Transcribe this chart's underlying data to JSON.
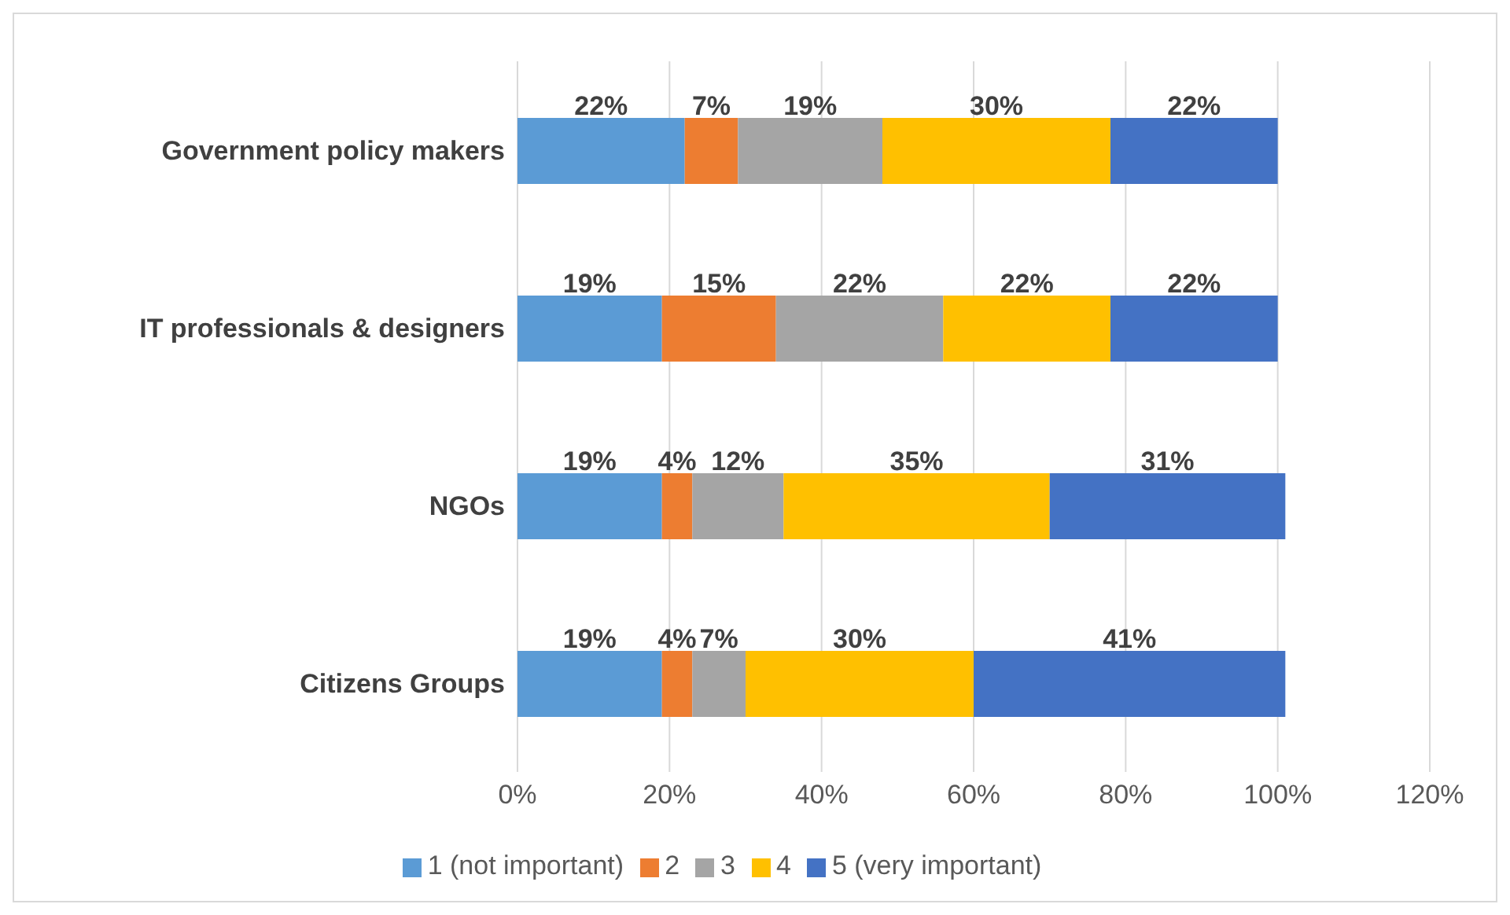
{
  "chart_data": {
    "type": "bar",
    "orientation": "horizontal",
    "stacked": true,
    "categories": [
      "Government policy makers",
      "IT professionals & designers",
      "NGOs",
      "Citizens Groups"
    ],
    "series": [
      {
        "name": "1 (not important)",
        "color": "#5b9bd5",
        "values": [
          22,
          19,
          19,
          19
        ],
        "value_labels": [
          "22%",
          "19%",
          "19%",
          "19%"
        ]
      },
      {
        "name": "2",
        "color": "#ed7d31",
        "values": [
          7,
          15,
          4,
          4
        ],
        "value_labels": [
          "7%",
          "15%",
          "4%",
          "4%"
        ]
      },
      {
        "name": "3",
        "color": "#a5a5a5",
        "values": [
          19,
          22,
          12,
          7
        ],
        "value_labels": [
          "19%",
          "22%",
          "12%",
          "7%"
        ]
      },
      {
        "name": "4",
        "color": "#ffc000",
        "values": [
          30,
          22,
          35,
          30
        ],
        "value_labels": [
          "30%",
          "22%",
          "35%",
          "30%"
        ]
      },
      {
        "name": "5 (very important)",
        "color": "#4472c4",
        "values": [
          22,
          22,
          31,
          41
        ],
        "value_labels": [
          "22%",
          "22%",
          "31%",
          "41%"
        ]
      }
    ],
    "xlim": [
      0,
      120
    ],
    "xticks": [
      {
        "value": 0,
        "label": "0%"
      },
      {
        "value": 20,
        "label": "20%"
      },
      {
        "value": 40,
        "label": "40%"
      },
      {
        "value": 60,
        "label": "60%"
      },
      {
        "value": 80,
        "label": "80%"
      },
      {
        "value": 100,
        "label": "100%"
      },
      {
        "value": 120,
        "label": "120%"
      }
    ],
    "grid": "x",
    "legend": "bottom"
  }
}
